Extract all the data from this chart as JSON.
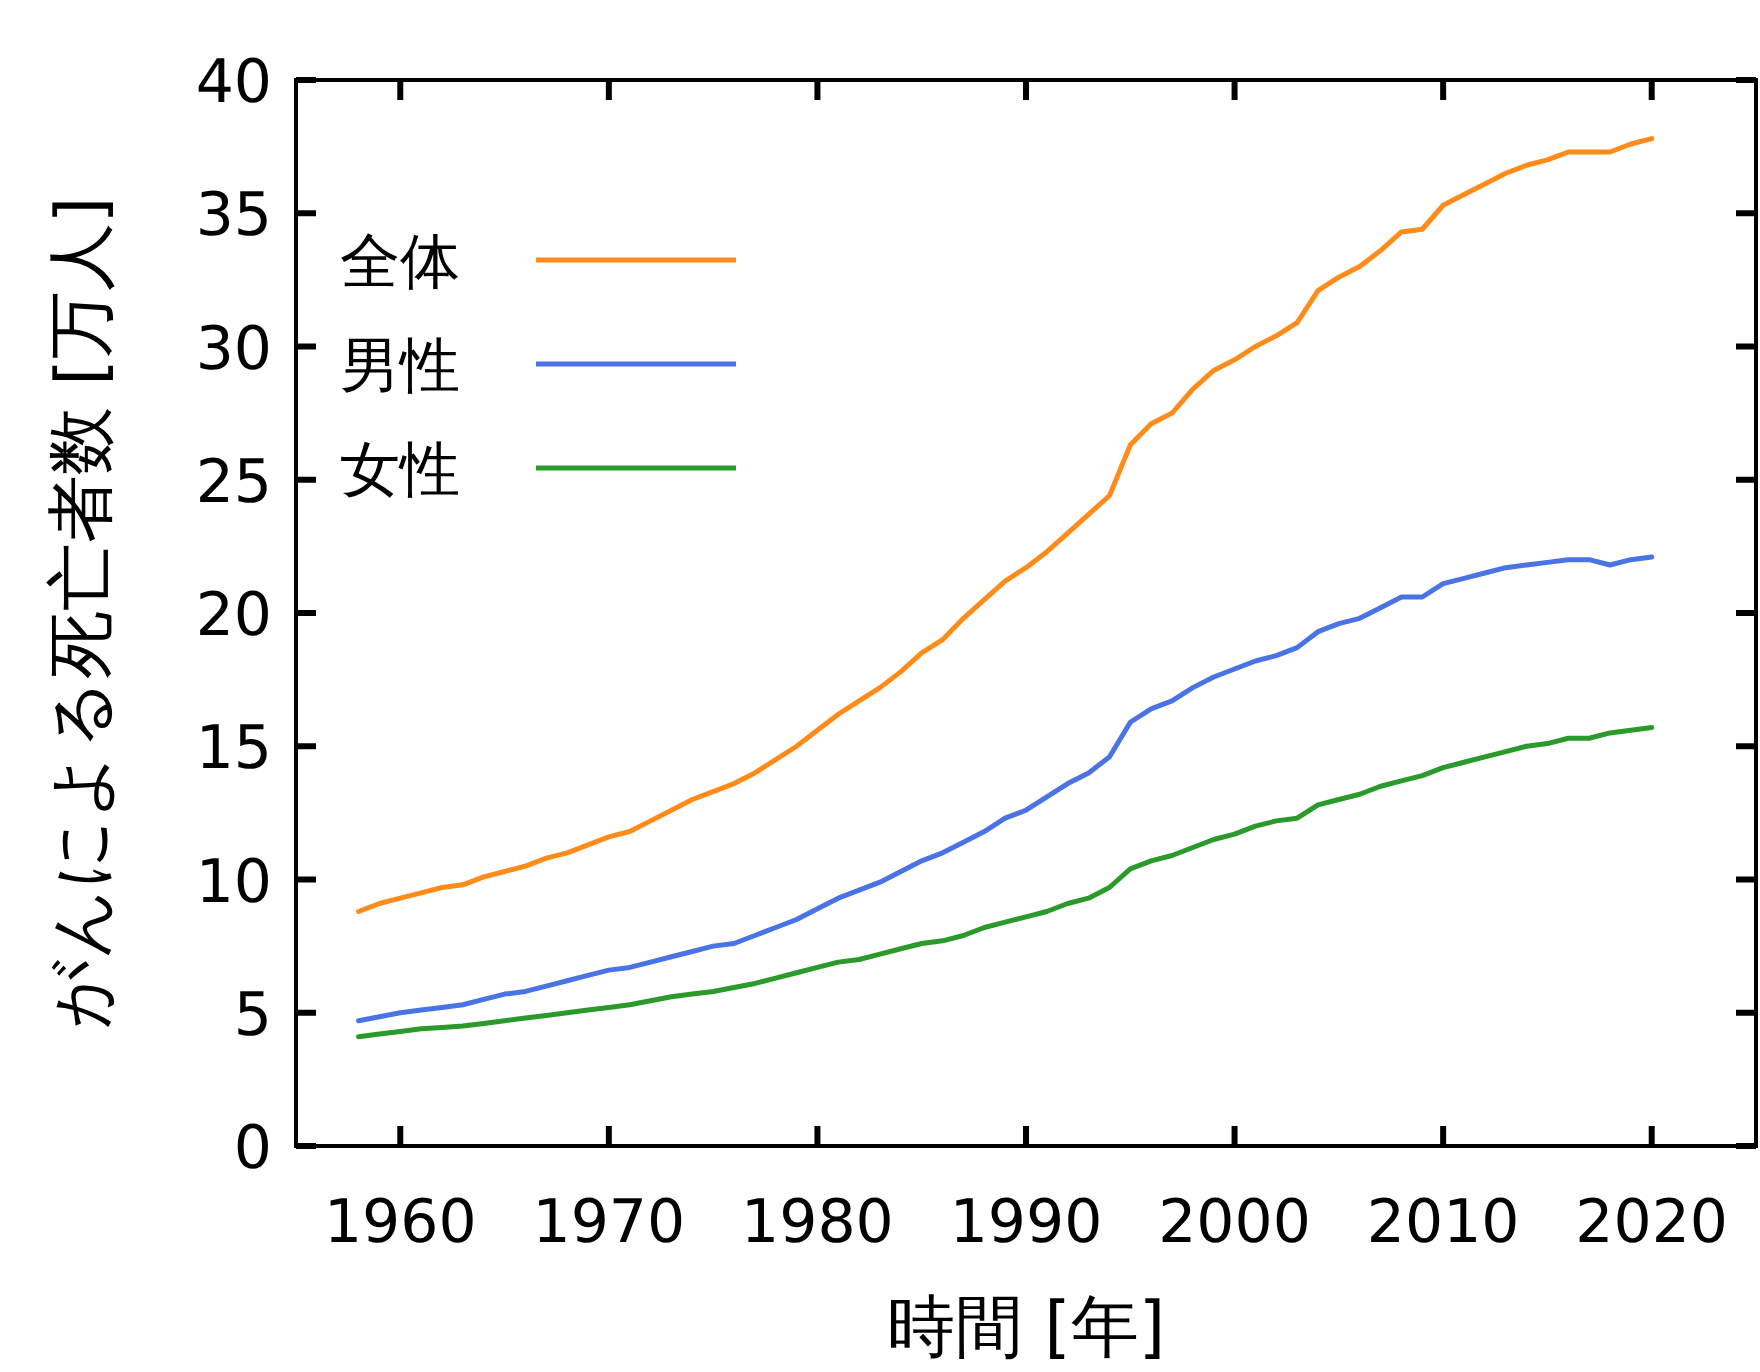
{
  "chart_data": {
    "type": "line",
    "xlabel": "時間 [年]",
    "ylabel": "がんによる死亡者数 [万人]",
    "x": [
      1958,
      1959,
      1960,
      1961,
      1962,
      1963,
      1964,
      1965,
      1966,
      1967,
      1968,
      1969,
      1970,
      1971,
      1972,
      1973,
      1974,
      1975,
      1976,
      1977,
      1978,
      1979,
      1980,
      1981,
      1982,
      1983,
      1984,
      1985,
      1986,
      1987,
      1988,
      1989,
      1990,
      1991,
      1992,
      1993,
      1994,
      1995,
      1996,
      1997,
      1998,
      1999,
      2000,
      2001,
      2002,
      2003,
      2004,
      2005,
      2006,
      2007,
      2008,
      2009,
      2010,
      2011,
      2012,
      2013,
      2014,
      2015,
      2016,
      2017,
      2018,
      2019,
      2020
    ],
    "series": [
      {
        "name": "全体",
        "color": "#ff8c1a",
        "values": [
          8.8,
          9.1,
          9.3,
          9.5,
          9.7,
          9.8,
          10.1,
          10.3,
          10.5,
          10.8,
          11.0,
          11.3,
          11.6,
          11.8,
          12.2,
          12.6,
          13.0,
          13.3,
          13.6,
          14.0,
          14.5,
          15.0,
          15.6,
          16.2,
          16.7,
          17.2,
          17.8,
          18.5,
          19.0,
          19.8,
          20.5,
          21.2,
          21.7,
          22.3,
          23.0,
          23.7,
          24.4,
          26.3,
          27.1,
          27.5,
          28.4,
          29.1,
          29.5,
          30.0,
          30.4,
          30.9,
          32.1,
          32.6,
          33.0,
          33.6,
          34.3,
          34.4,
          35.3,
          35.7,
          36.1,
          36.5,
          36.8,
          37.0,
          37.3,
          37.3,
          37.3,
          37.6,
          37.8
        ]
      },
      {
        "name": "男性",
        "color": "#4a74e6",
        "values": [
          4.7,
          4.85,
          5.0,
          5.1,
          5.2,
          5.3,
          5.5,
          5.7,
          5.8,
          6.0,
          6.2,
          6.4,
          6.6,
          6.7,
          6.9,
          7.1,
          7.3,
          7.5,
          7.6,
          7.9,
          8.2,
          8.5,
          8.9,
          9.3,
          9.6,
          9.9,
          10.3,
          10.7,
          11.0,
          11.4,
          11.8,
          12.3,
          12.6,
          13.1,
          13.6,
          14.0,
          14.6,
          15.9,
          16.4,
          16.7,
          17.2,
          17.6,
          17.9,
          18.2,
          18.4,
          18.7,
          19.3,
          19.6,
          19.8,
          20.2,
          20.6,
          20.6,
          21.1,
          21.3,
          21.5,
          21.7,
          21.8,
          21.9,
          22.0,
          22.0,
          21.8,
          22.0,
          22.1
        ]
      },
      {
        "name": "女性",
        "color": "#2a9a2a",
        "values": [
          4.1,
          4.2,
          4.3,
          4.4,
          4.45,
          4.5,
          4.6,
          4.7,
          4.8,
          4.9,
          5.0,
          5.1,
          5.2,
          5.3,
          5.45,
          5.6,
          5.7,
          5.8,
          5.95,
          6.1,
          6.3,
          6.5,
          6.7,
          6.9,
          7.0,
          7.2,
          7.4,
          7.6,
          7.7,
          7.9,
          8.2,
          8.4,
          8.6,
          8.8,
          9.1,
          9.3,
          9.7,
          10.4,
          10.7,
          10.9,
          11.2,
          11.5,
          11.7,
          12.0,
          12.2,
          12.3,
          12.8,
          13.0,
          13.2,
          13.5,
          13.7,
          13.9,
          14.2,
          14.4,
          14.6,
          14.8,
          15.0,
          15.1,
          15.3,
          15.3,
          15.5,
          15.6,
          15.7
        ]
      }
    ],
    "xlim": [
      1955,
      2025
    ],
    "xticks": [
      1960,
      1970,
      1980,
      1990,
      2000,
      2010,
      2020
    ],
    "ylim": [
      0,
      40
    ],
    "yticks": [
      0,
      5,
      10,
      15,
      20,
      25,
      30,
      35,
      40
    ],
    "legend": "top left",
    "grid": false,
    "marker": "none",
    "line_style": "solid"
  }
}
